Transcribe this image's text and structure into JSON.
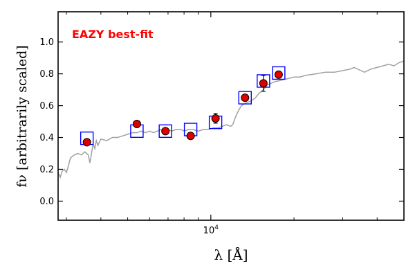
{
  "chart_data": {
    "type": "scatter",
    "title": "",
    "annotation": "EAZY best-fit",
    "annotation_color": "#ff0000",
    "xlabel": "λ [Å]",
    "ylabel": "fν [arbitrarily scaled]",
    "x_scale": "log",
    "xlim": [
      2800,
      50000
    ],
    "ylim": [
      -0.12,
      1.19
    ],
    "yticks": [
      0.0,
      0.2,
      0.4,
      0.6,
      0.8,
      1.0
    ],
    "ytick_labels": [
      "0.0",
      "0.2",
      "0.4",
      "0.6",
      "0.8",
      "1.0"
    ],
    "xtick_major": [
      10000
    ],
    "xtick_major_labels": [
      "10^4"
    ],
    "xtick_minor": [
      3000,
      4000,
      5000,
      6000,
      7000,
      8000,
      9000,
      20000,
      30000,
      40000
    ],
    "grid": false,
    "legend": "none",
    "colors": {
      "template": "#a0a0a0",
      "model_box": "#0000ff",
      "observed_fill": "#dd0000",
      "observed_edge": "#000000",
      "annotation": "#ff0000"
    },
    "series": [
      {
        "kind": "line",
        "x": [
          2800,
          2850,
          2900,
          2950,
          3000,
          3050,
          3100,
          3150,
          3200,
          3300,
          3400,
          3500,
          3600,
          3650,
          3700,
          3750,
          3800,
          3850,
          3900,
          4000,
          4200,
          4400,
          4600,
          4800,
          5000,
          5200,
          5400,
          5600,
          5800,
          6000,
          6200,
          6400,
          6600,
          6800,
          7000,
          7200,
          7500,
          7800,
          8000,
          8300,
          8600,
          9000,
          9400,
          9800,
          10200,
          10600,
          11000,
          11400,
          11800,
          12000,
          12300,
          12600,
          12900,
          13200,
          13500,
          14000,
          14500,
          15000,
          15500,
          16000,
          16500,
          17000,
          18000,
          19000,
          20000,
          21000,
          22000,
          24000,
          26000,
          28000,
          30000,
          32000,
          33000,
          35000,
          36000,
          38000,
          40000,
          42000,
          44000,
          46000,
          48000,
          50000
        ],
        "y": [
          0.18,
          0.15,
          0.19,
          0.2,
          0.18,
          0.22,
          0.27,
          0.28,
          0.29,
          0.3,
          0.29,
          0.31,
          0.29,
          0.24,
          0.3,
          0.36,
          0.33,
          0.38,
          0.35,
          0.39,
          0.38,
          0.4,
          0.4,
          0.41,
          0.42,
          0.43,
          0.43,
          0.44,
          0.43,
          0.44,
          0.43,
          0.44,
          0.45,
          0.44,
          0.45,
          0.44,
          0.45,
          0.45,
          0.44,
          0.45,
          0.45,
          0.44,
          0.45,
          0.45,
          0.46,
          0.46,
          0.47,
          0.48,
          0.47,
          0.48,
          0.53,
          0.57,
          0.6,
          0.61,
          0.62,
          0.63,
          0.65,
          0.68,
          0.7,
          0.73,
          0.74,
          0.75,
          0.76,
          0.77,
          0.78,
          0.78,
          0.79,
          0.8,
          0.81,
          0.81,
          0.82,
          0.83,
          0.84,
          0.82,
          0.81,
          0.83,
          0.84,
          0.85,
          0.86,
          0.85,
          0.87,
          0.88
        ]
      },
      {
        "kind": "model_boxes",
        "x": [
          3560,
          5400,
          6850,
          8450,
          10400,
          13300,
          15500,
          17600
        ],
        "y": [
          0.395,
          0.44,
          0.44,
          0.45,
          0.495,
          0.65,
          0.755,
          0.805
        ]
      },
      {
        "kind": "observed_points",
        "x": [
          3560,
          5400,
          6850,
          8450,
          10400,
          13300,
          15500,
          17600
        ],
        "y": [
          0.37,
          0.485,
          0.44,
          0.41,
          0.52,
          0.65,
          0.74,
          0.795
        ],
        "yerr": [
          0.008,
          0.008,
          0.01,
          0.01,
          0.03,
          0.01,
          0.05,
          0.01
        ]
      }
    ]
  }
}
